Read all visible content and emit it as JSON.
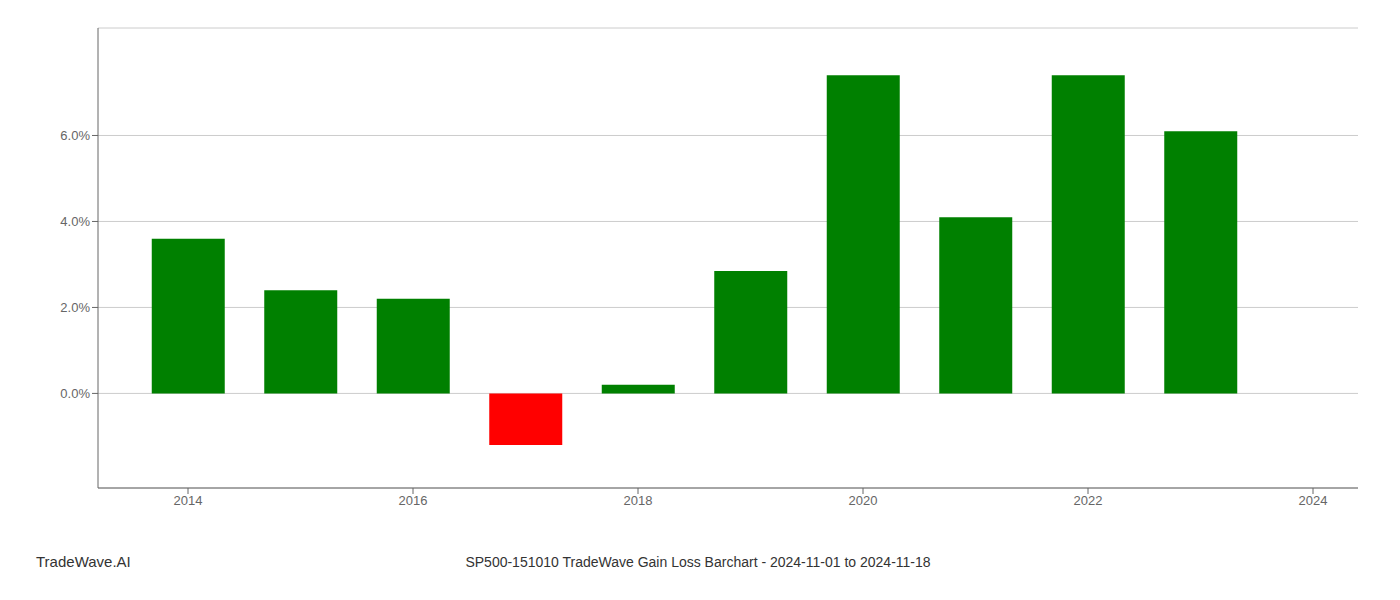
{
  "chart_data": {
    "type": "bar",
    "title": "SP500-151010 TradeWave Gain Loss Barchart - 2024-11-01 to 2024-11-18",
    "x": [
      2014,
      2015,
      2016,
      2017,
      2018,
      2019,
      2020,
      2021,
      2022,
      2023
    ],
    "values": [
      0.036,
      0.024,
      0.022,
      -0.012,
      0.002,
      0.0285,
      0.074,
      0.041,
      0.074,
      0.061
    ],
    "colors": [
      "#008000",
      "#008000",
      "#008000",
      "#ff0000",
      "#008000",
      "#008000",
      "#008000",
      "#008000",
      "#008000",
      "#008000"
    ],
    "xlim": [
      2013.2,
      2024.4
    ],
    "xticks": [
      2014,
      2016,
      2018,
      2020,
      2022,
      2024
    ],
    "ylim": [
      -0.022,
      0.085
    ],
    "yticks": [
      {
        "value": 0.0,
        "label": "0.0%"
      },
      {
        "value": 0.02,
        "label": "2.0%"
      },
      {
        "value": 0.04,
        "label": "4.0%"
      },
      {
        "value": 0.06,
        "label": "6.0%"
      }
    ],
    "grid": true,
    "annotations": [
      "TradeWave.AI"
    ]
  }
}
